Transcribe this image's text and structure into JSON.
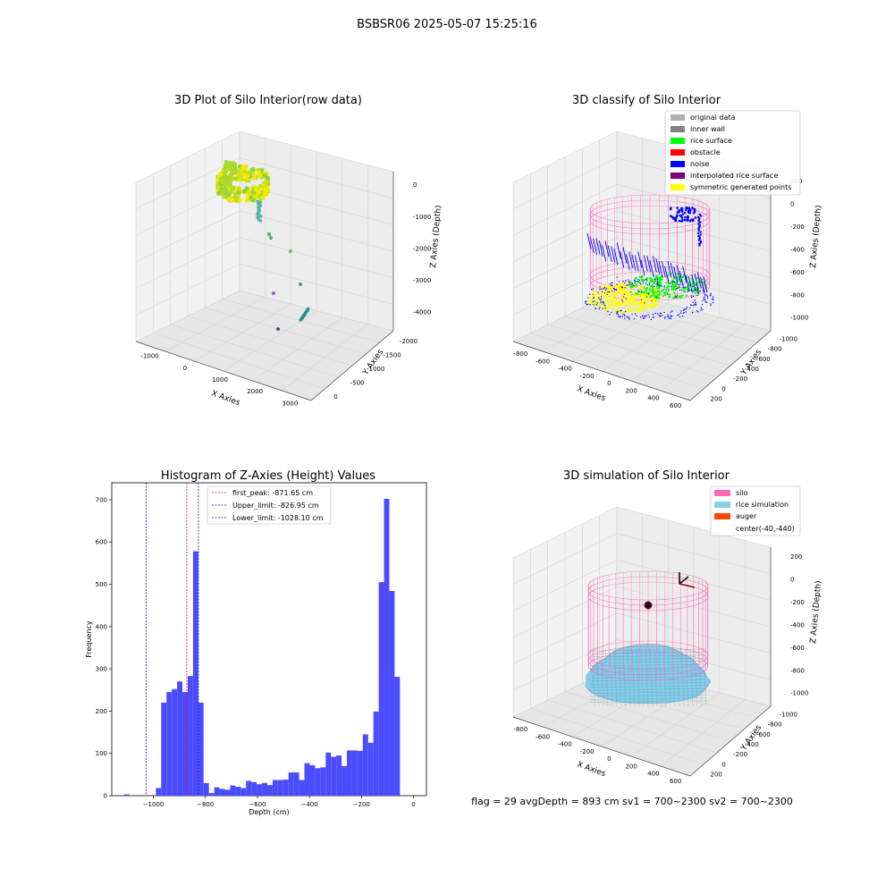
{
  "figure": {
    "suptitle": "BSBSR06 2025-05-07 15:25:16",
    "footer": "flag = 29  avgDepth = 893 cm  sv1 = 700~2300  sv2 = 700~2300"
  },
  "colors": {
    "pane": "#f2f2f2",
    "pane_dark": "#e6e6e6",
    "grid": "#d4d4d4",
    "hist_bar": "#4c4cff",
    "peak_line": "#ff0000",
    "limit_line": "#0000ff",
    "silo": "#ff69b4",
    "rice_sim": "#87ceeb",
    "auger": "#ff4500",
    "inner_wall": "#808080",
    "original": "#b0b0b0",
    "rice_surface": "#00ff00",
    "obstacle": "#ff0000",
    "noise": "#0000ff",
    "interpolated": "#800080",
    "symmetric": "#ffff00"
  },
  "chart_data": [
    {
      "type": "scatter",
      "title": "3D Plot of Silo Interior(row data)",
      "xlabel": "X Axies",
      "ylabel": "Y Axies",
      "zlabel": "Z Axies (Depth)",
      "x_ticks": [
        "-1000",
        "0",
        "1000",
        "2000",
        "3000"
      ],
      "y_ticks": [
        "0",
        "-500",
        "-1000",
        "-1500",
        "-2000"
      ],
      "z_ticks": [
        "0",
        "-1000",
        "-2000",
        "-3000",
        "-4000"
      ]
    },
    {
      "type": "scatter",
      "title": "3D classify of Silo Interior",
      "xlabel": "X Axies",
      "ylabel": "Y Axies",
      "zlabel": "Z Axies (Depth)",
      "x_ticks": [
        "-800",
        "-600",
        "-400",
        "-200",
        "0",
        "200",
        "400",
        "600"
      ],
      "y_ticks": [
        "200",
        "0",
        "-200",
        "-400",
        "-600",
        "-800",
        "-1000"
      ],
      "z_ticks": [
        "200",
        "0",
        "-200",
        "-400",
        "-600",
        "-800",
        "-1000"
      ],
      "legend": [
        {
          "label": "original data",
          "color": "#b0b0b0"
        },
        {
          "label": "inner wall",
          "color": "#808080"
        },
        {
          "label": "rice surface",
          "color": "#00ff00"
        },
        {
          "label": "obstacle",
          "color": "#ff0000"
        },
        {
          "label": "noise",
          "color": "#0000ff"
        },
        {
          "label": "interpolated rice surface",
          "color": "#800080"
        },
        {
          "label": "symmetric generated points",
          "color": "#ffff00"
        }
      ]
    },
    {
      "type": "bar",
      "title": "Histogram of Z-Axies (Height) Values",
      "xlabel": "Depth (cm)",
      "ylabel": "Frequency",
      "xlim": [
        -1160,
        50
      ],
      "ylim": [
        0,
        740
      ],
      "x_ticks": [
        -1000,
        -800,
        -600,
        -400,
        -200,
        0
      ],
      "y_ticks": [
        0,
        100,
        200,
        300,
        400,
        500,
        600,
        700
      ],
      "bin_width": 20.4,
      "bin_start": -1112.7,
      "values": [
        3,
        0,
        0,
        0,
        0,
        0,
        18,
        220,
        245,
        252,
        270,
        245,
        283,
        578,
        220,
        30,
        6,
        20,
        16,
        14,
        24,
        21,
        18,
        35,
        32,
        27,
        30,
        25,
        37,
        37,
        38,
        55,
        55,
        37,
        77,
        72,
        65,
        67,
        102,
        92,
        95,
        70,
        107,
        107,
        106,
        145,
        125,
        199,
        505,
        702,
        484,
        281
      ],
      "vlines": [
        {
          "label": "first_peak: -871.65 cm",
          "x": -871.65,
          "color": "#ff0000"
        },
        {
          "label": "Upper_limit: -826.95 cm",
          "x": -826.95,
          "color": "#0000ff"
        },
        {
          "label": "Lower_limit: -1028.10 cm",
          "x": -1028.1,
          "color": "#0000ff"
        }
      ]
    },
    {
      "type": "scatter",
      "title": "3D simulation of Silo Interior",
      "xlabel": "X Axies",
      "ylabel": "Y Axies",
      "zlabel": "Z Axies (Depth)",
      "x_ticks": [
        "-800",
        "-600",
        "-400",
        "-200",
        "0",
        "200",
        "400",
        "600"
      ],
      "y_ticks": [
        "200",
        "0",
        "-200",
        "-400",
        "-600",
        "-800",
        "-1000"
      ],
      "z_ticks": [
        "200",
        "0",
        "-200",
        "-400",
        "-600",
        "-800",
        "-1000"
      ],
      "legend": [
        {
          "label": "silo",
          "color": "#ff69b4"
        },
        {
          "label": "rice simulation",
          "color": "#87ceeb"
        },
        {
          "label": "auger",
          "color": "#ff4500"
        },
        {
          "label": "center(-40,-440)",
          "color": ""
        }
      ]
    }
  ]
}
